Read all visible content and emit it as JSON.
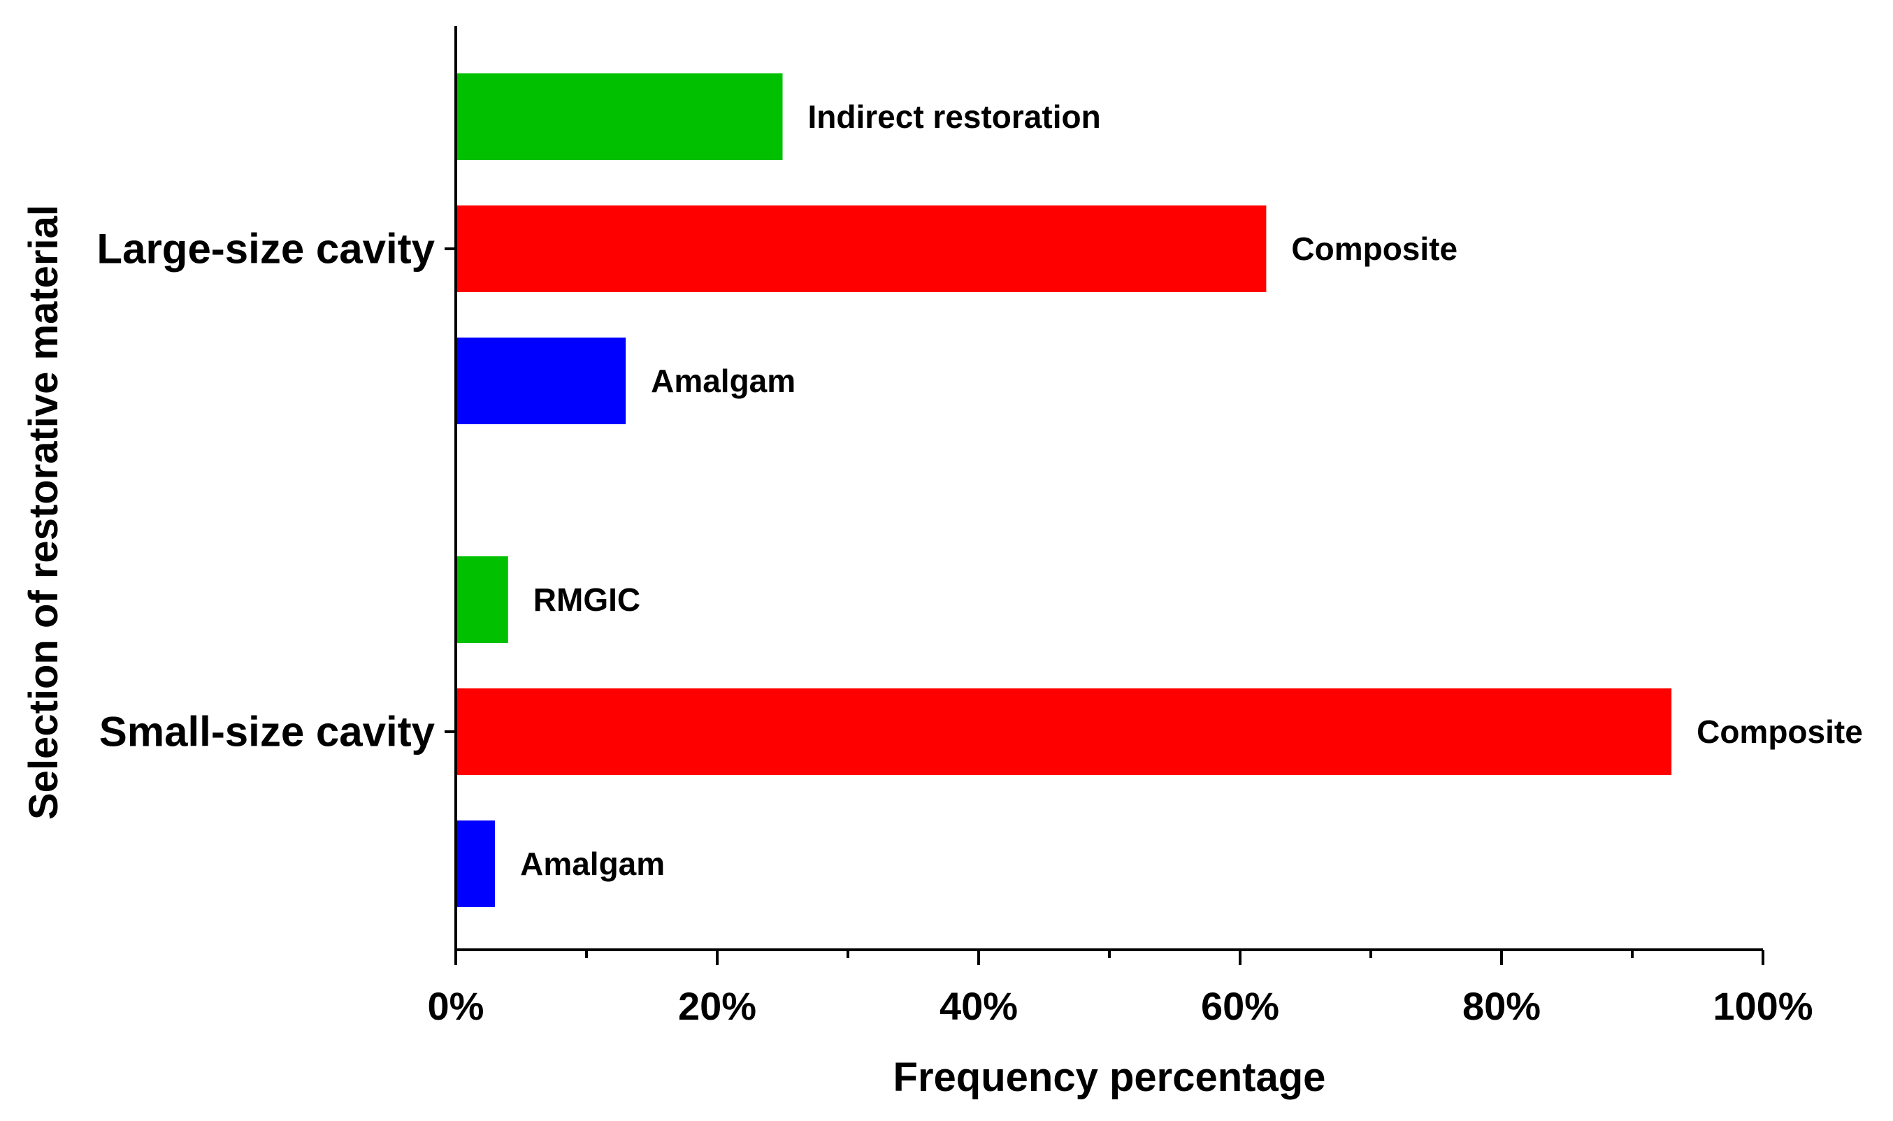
{
  "chart_data": {
    "type": "bar",
    "orientation": "horizontal",
    "title": "",
    "xlabel": "Frequency percentage",
    "ylabel": "Selection of restorative material",
    "xlim": [
      0,
      100
    ],
    "x_ticks": [
      0,
      20,
      40,
      60,
      80,
      100
    ],
    "x_tick_labels": [
      "0%",
      "20%",
      "40%",
      "60%",
      "80%",
      "100%"
    ],
    "grid": false,
    "legend": "none",
    "groups": [
      {
        "category": "Large-size cavity",
        "bars": [
          {
            "label": "Indirect restoration",
            "value": 25,
            "color": "#00c000"
          },
          {
            "label": "Composite",
            "value": 62,
            "color": "#ff0000"
          },
          {
            "label": "Amalgam",
            "value": 13,
            "color": "#0000ff"
          }
        ]
      },
      {
        "category": "Small-size cavity",
        "bars": [
          {
            "label": "RMGIC",
            "value": 4,
            "color": "#00c000"
          },
          {
            "label": "Composite",
            "value": 93,
            "color": "#ff0000"
          },
          {
            "label": "Amalgam",
            "value": 3,
            "color": "#0000ff"
          }
        ]
      }
    ]
  }
}
